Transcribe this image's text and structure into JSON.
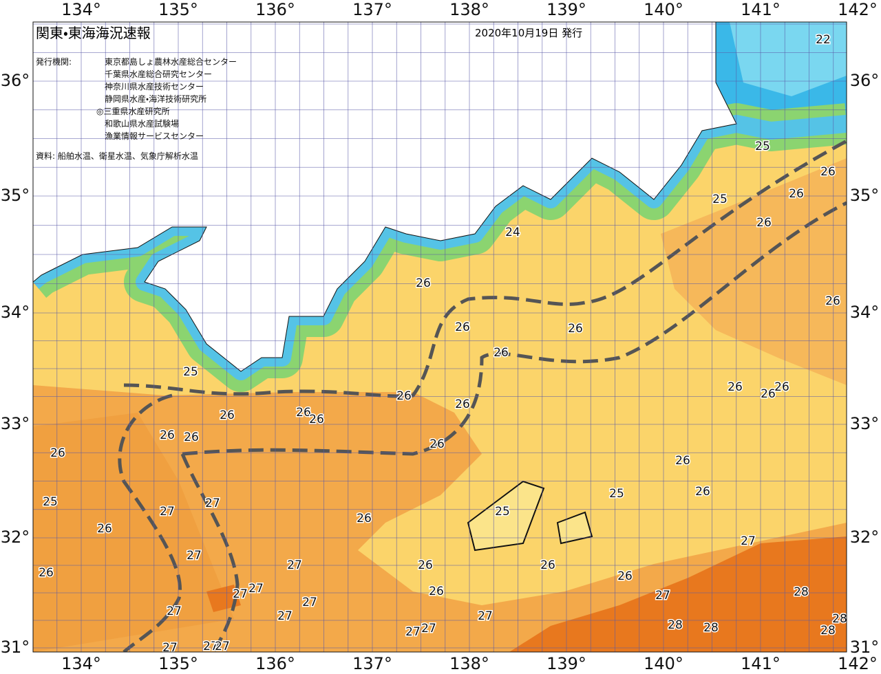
{
  "header": {
    "title": "関東・東海海況速報",
    "date": "2020年10月19日 発行",
    "issuers_label": "発行機関:",
    "issuers": [
      "東京都島しょ農林水産総合センター",
      "千葉県水産総合研究センター",
      "神奈川県水産技術センター",
      "静岡県水産・海洋技術研究所",
      "◎三重県水産研究所",
      "和歌山県水産試験場",
      "漁業情報サービスセンター"
    ],
    "source": "資料: 船舶水温、衛星水温、気象庁解析水温"
  },
  "map": {
    "longitude_labels": [
      "134°",
      "135°",
      "136°",
      "137°",
      "138°",
      "139°",
      "140°",
      "141°",
      "142°"
    ],
    "latitude_labels": [
      "36°",
      "35°",
      "34°",
      "33°",
      "32°",
      "31°"
    ],
    "isotherm_labels": [
      "22",
      "25",
      "26",
      "26",
      "25",
      "26",
      "24",
      "26",
      "26",
      "26",
      "26",
      "26",
      "25",
      "26",
      "26",
      "26",
      "26",
      "26",
      "26",
      "26",
      "26",
      "26",
      "26",
      "26",
      "26",
      "26",
      "25",
      "26",
      "25",
      "27",
      "27",
      "25",
      "26",
      "26",
      "27",
      "27",
      "27",
      "26",
      "26",
      "26",
      "26",
      "27",
      "27",
      "26",
      "28",
      "27",
      "27",
      "27",
      "27",
      "27",
      "28",
      "28",
      "28",
      "28",
      "27",
      "27",
      "27",
      "27",
      "27"
    ]
  }
}
